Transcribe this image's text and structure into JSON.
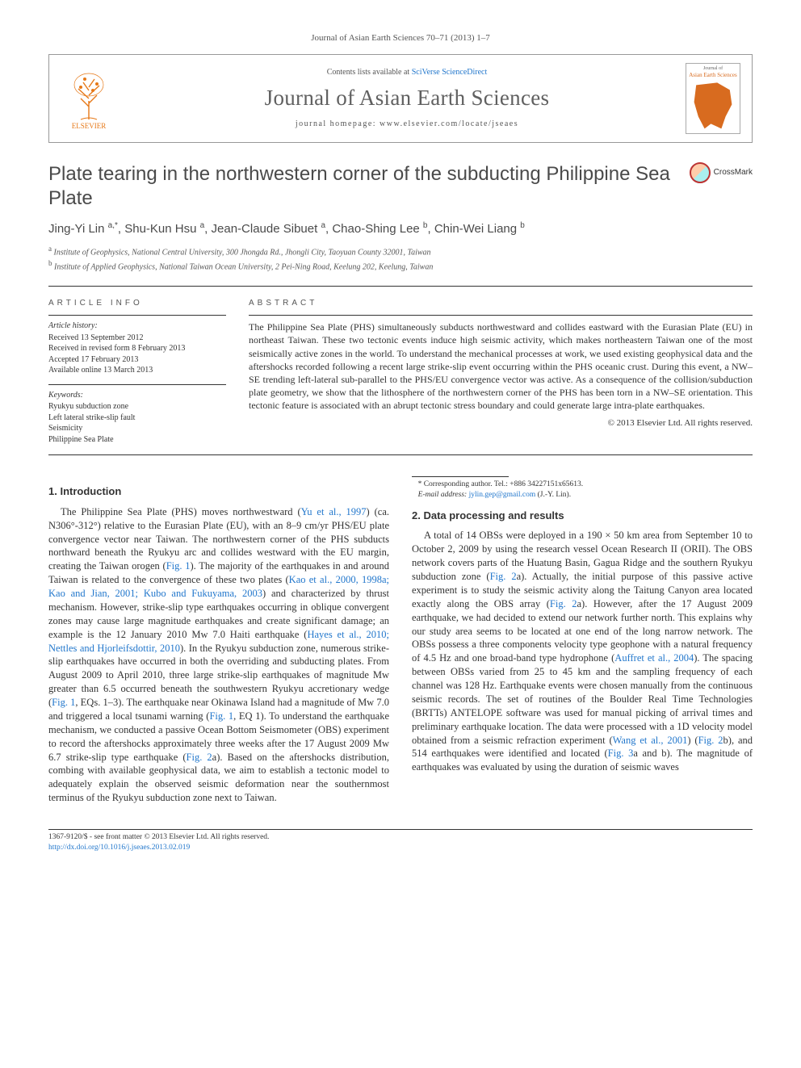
{
  "journal_ref": "Journal of Asian Earth Sciences 70–71 (2013) 1–7",
  "header": {
    "contents_prefix": "Contents lists available at ",
    "contents_link": "SciVerse ScienceDirect",
    "journal_title": "Journal of Asian Earth Sciences",
    "homepage_prefix": "journal homepage: ",
    "homepage_url": "www.elsevier.com/locate/jseaes",
    "publisher": "ELSEVIER",
    "cover_label": "Asian Earth Sciences"
  },
  "crossmark": "CrossMark",
  "title": "Plate tearing in the northwestern corner of the subducting Philippine Sea Plate",
  "authors_html": "Jing-Yi Lin <sup>a,*</sup>, Shu-Kun Hsu <sup>a</sup>, Jean-Claude Sibuet <sup>a</sup>, Chao-Shing Lee <sup>b</sup>, Chin-Wei Liang <sup>b</sup>",
  "affiliations": {
    "a": "Institute of Geophysics, National Central University, 300 Jhongda Rd., Jhongli City, Taoyuan County 32001, Taiwan",
    "b": "Institute of Applied Geophysics, National Taiwan Ocean University, 2 Pei-Ning Road, Keelung 202, Keelung, Taiwan"
  },
  "article_info": {
    "label": "ARTICLE INFO",
    "history_label": "Article history:",
    "received": "Received 13 September 2012",
    "revised": "Received in revised form 8 February 2013",
    "accepted": "Accepted 17 February 2013",
    "online": "Available online 13 March 2013",
    "keywords_label": "Keywords:",
    "keywords": [
      "Ryukyu subduction zone",
      "Left lateral strike-slip fault",
      "Seismicity",
      "Philippine Sea Plate"
    ]
  },
  "abstract": {
    "label": "ABSTRACT",
    "text": "The Philippine Sea Plate (PHS) simultaneously subducts northwestward and collides eastward with the Eurasian Plate (EU) in northeast Taiwan. These two tectonic events induce high seismic activity, which makes northeastern Taiwan one of the most seismically active zones in the world. To understand the mechanical processes at work, we used existing geophysical data and the aftershocks recorded following a recent large strike-slip event occurring within the PHS oceanic crust. During this event, a NW–SE trending left-lateral sub-parallel to the PHS/EU convergence vector was active. As a consequence of the collision/subduction plate geometry, we show that the lithosphere of the northwestern corner of the PHS has been torn in a NW–SE orientation. This tectonic feature is associated with an abrupt tectonic stress boundary and could generate large intra-plate earthquakes.",
    "copyright": "© 2013 Elsevier Ltd. All rights reserved."
  },
  "sections": {
    "intro_heading": "1. Introduction",
    "intro_p1_a": "The Philippine Sea Plate (PHS) moves northwestward (",
    "intro_p1_ref1": "Yu et al., 1997",
    "intro_p1_b": ") (ca. N306°-312°) relative to the Eurasian Plate (EU), with an 8–9 cm/yr PHS/EU plate convergence vector near Taiwan. The northwestern corner of the PHS subducts northward beneath the Ryukyu arc and collides westward with the EU margin, creating the Taiwan orogen (",
    "intro_p1_ref_fig1a": "Fig. 1",
    "intro_p1_c": "). The majority of the earthquakes in and around Taiwan is related to the convergence of these two plates (",
    "intro_p1_ref2": "Kao et al., 2000, 1998a; Kao and Jian, 2001; Kubo and Fukuyama, 2003",
    "intro_p1_d": ") and characterized by thrust mechanism. However, strike-slip type earthquakes occurring in oblique convergent zones may cause large magnitude earthquakes and create significant damage; an example is the 12 January 2010 Mw 7.0 Haiti earthquake (",
    "intro_p1_ref3": "Hayes et al., 2010; Nettles and Hjorleifsdottir, 2010",
    "intro_p1_e": "). In the Ryukyu subduction zone, numerous strike-slip earthquakes have occurred in both the overriding and subducting plates. From August 2009 to April 2010, three large strike-slip earthquakes of magnitude Mw greater than 6.5 occurred beneath the southwestern Ryukyu accretionary wedge (",
    "intro_p1_ref_fig1b": "Fig. 1",
    "intro_p1_f": ", EQs. 1–3). The earthquake near Okinawa Island had a magnitude of Mw 7.0 and triggered a local tsunami warning (",
    "intro_p1_ref_fig1c": "Fig. 1",
    "intro_p1_g": ", EQ 1). To understand the earthquake mechanism, we conducted a passive Ocean Bottom Seismometer (OBS) experiment to record the aftershocks approximately three weeks after the 17 August 2009 Mw 6.7 strike-slip type earthquake (",
    "intro_p1_ref_fig2a": "Fig. 2",
    "intro_p1_h": "a). Based on the aftershocks distribution, combing with available geophysical data, we aim to establish a tectonic model to adequately explain the observed seismic deformation near the southernmost terminus of the Ryukyu subduction zone next to Taiwan.",
    "data_heading": "2. Data processing and results",
    "data_p1_a": "A total of 14 OBSs were deployed in a 190 × 50 km area from September 10 to October 2, 2009 by using the research vessel Ocean Research II (ORII). The OBS network covers parts of the Huatung Basin, Gagua Ridge and the southern Ryukyu subduction zone (",
    "data_p1_ref_fig2a": "Fig. 2",
    "data_p1_b": "a). Actually, the initial purpose of this passive active experiment is to study the seismic activity along the Taitung Canyon area located exactly along the OBS array (",
    "data_p1_ref_fig2b": "Fig. 2",
    "data_p1_c": "a). However, after the 17 August 2009 earthquake, we had decided to extend our network further north. This explains why our study area seems to be located at one end of the long narrow network. The OBSs possess a three components velocity type geophone with a natural frequency of 4.5 Hz and one broad-band type hydrophone (",
    "data_p1_ref_auff": "Auffret et al., 2004",
    "data_p1_d": "). The spacing between OBSs varied from 25 to 45 km and the sampling frequency of each channel was 128 Hz. Earthquake events were chosen manually from the continuous seismic records. The set of routines of the Boulder Real Time Technologies (BRTTs) ANTELOPE software was used for manual picking of arrival times and preliminary earthquake location. The data were processed with a 1D velocity model obtained from a seismic refraction experiment (",
    "data_p1_ref_wang": "Wang et al., 2001",
    "data_p1_e": ") (",
    "data_p1_ref_fig2c": "Fig. 2",
    "data_p1_f": "b), and 514 earthquakes were identified and located (",
    "data_p1_ref_fig3": "Fig. 3",
    "data_p1_g": "a and b). The magnitude of earthquakes was evaluated by using the duration of seismic waves"
  },
  "footnote": {
    "corr_label": "* Corresponding author. Tel.: +886 34227151x65613.",
    "email_label": "E-mail address: ",
    "email": "jylin.gep@gmail.com",
    "email_who": " (J.-Y. Lin)."
  },
  "bottom": {
    "issn": "1367-9120/$ - see front matter © 2013 Elsevier Ltd. All rights reserved.",
    "doi": "http://dx.doi.org/10.1016/j.jseaes.2013.02.019"
  }
}
